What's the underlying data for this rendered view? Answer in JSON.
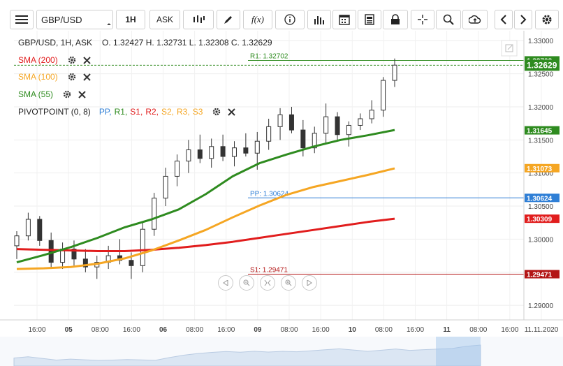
{
  "toolbar": {
    "symbol": "GBP/USD",
    "timeframe": "1H",
    "price_type": "ASK",
    "fx_label": "f(x)"
  },
  "header": {
    "instrument": "GBP/USD, 1H, ASK",
    "ohlc": "O. 1.32427 H. 1.32731 L. 1.32308 C. 1.32629"
  },
  "indicators": [
    {
      "label": "SMA (200)",
      "color": "#e11d1d"
    },
    {
      "label": "SMA (100)",
      "color": "#f5a623"
    },
    {
      "label": "SMA (55)",
      "color": "#2e8b1f"
    }
  ],
  "pivot": {
    "label": "PIVOTPOINT (0, 8)",
    "levels_legend": [
      {
        "text": "PP,",
        "color": "#2f7fd6"
      },
      {
        "text": "R1,",
        "color": "#2e8b1f"
      },
      {
        "text": "S1,",
        "color": "#e11d1d"
      },
      {
        "text": "R2,",
        "color": "#e11d1d"
      },
      {
        "text": "S2,",
        "color": "#f5a623"
      },
      {
        "text": "R3,",
        "color": "#f5a623"
      },
      {
        "text": "S3",
        "color": "#f5a623"
      }
    ]
  },
  "chart_data": {
    "type": "line",
    "title": "GBP/USD, 1H, ASK",
    "y_axis_ticks": [
      "1.33000",
      "1.32500",
      "1.32000",
      "1.31500",
      "1.31000",
      "1.30500",
      "1.30000",
      "1.29500",
      "1.29000"
    ],
    "ylim": [
      1.2878,
      1.3315
    ],
    "x_axis_ticks": [
      "16:00",
      "05",
      "08:00",
      "16:00",
      "06",
      "08:00",
      "16:00",
      "09",
      "08:00",
      "16:00",
      "10",
      "08:00",
      "16:00",
      "11",
      "08:00",
      "16:00",
      "11.11.2020"
    ],
    "price_tags": [
      {
        "label": "1.32702",
        "value": 1.32702,
        "bg": "#2e8b1f"
      },
      {
        "label": "1.32629",
        "value": 1.32629,
        "bg": "#2e8b1f"
      },
      {
        "label": "1.31645",
        "value": 1.31645,
        "bg": "#2e8b1f"
      },
      {
        "label": "1.31073",
        "value": 1.31073,
        "bg": "#f5a623"
      },
      {
        "label": "1.30624",
        "value": 1.30624,
        "bg": "#2f7fd6"
      },
      {
        "label": "1.30309",
        "value": 1.30309,
        "bg": "#e11d1d"
      },
      {
        "label": "1.29471",
        "value": 1.29471,
        "bg": "#b31515"
      }
    ],
    "pivot_lines": [
      {
        "label": "R1: 1.32702",
        "value": 1.32702,
        "color": "#2e8b1f"
      },
      {
        "label": "PP: 1.30624",
        "value": 1.30624,
        "color": "#2f7fd6"
      },
      {
        "label": "S1: 1.29471",
        "value": 1.29471,
        "color": "#b31515"
      }
    ],
    "series": [
      {
        "name": "SMA (200)",
        "color": "#e11d1d",
        "values": [
          1.2985,
          1.2984,
          1.2983,
          1.2982,
          1.2982,
          1.2984,
          1.2987,
          1.2991,
          1.2996,
          1.3002,
          1.3008,
          1.3014,
          1.302,
          1.3026,
          1.3031
        ]
      },
      {
        "name": "SMA (100)",
        "color": "#f5a623",
        "values": [
          1.2955,
          1.2956,
          1.2958,
          1.2963,
          1.2971,
          1.2983,
          1.2998,
          1.3014,
          1.3033,
          1.3051,
          1.3067,
          1.3079,
          1.3088,
          1.3097,
          1.3107
        ]
      },
      {
        "name": "SMA (55)",
        "color": "#2e8b1f",
        "values": [
          1.2965,
          1.2976,
          1.2988,
          1.3002,
          1.3018,
          1.303,
          1.3045,
          1.3068,
          1.3095,
          1.3115,
          1.3128,
          1.314,
          1.315,
          1.3157,
          1.3165
        ]
      }
    ],
    "candles": [
      [
        1.299,
        1.3012,
        1.297,
        1.3005
      ],
      [
        1.3005,
        1.304,
        1.2998,
        1.303
      ],
      [
        1.303,
        1.3035,
        1.299,
        1.2998
      ],
      [
        1.2998,
        1.301,
        1.2955,
        1.2965
      ],
      [
        1.2965,
        1.2995,
        1.2955,
        1.2985
      ],
      [
        1.2985,
        1.2998,
        1.296,
        1.297
      ],
      [
        1.297,
        1.2985,
        1.295,
        1.2958
      ],
      [
        1.2958,
        1.2975,
        1.294,
        1.2965
      ],
      [
        1.2965,
        1.299,
        1.2955,
        1.2975
      ],
      [
        1.2975,
        1.3,
        1.2962,
        1.2968
      ],
      [
        1.2968,
        1.298,
        1.294,
        1.296
      ],
      [
        1.296,
        1.3025,
        1.295,
        1.3015
      ],
      [
        1.3015,
        1.307,
        1.3005,
        1.3062
      ],
      [
        1.3062,
        1.3108,
        1.305,
        1.3095
      ],
      [
        1.3095,
        1.3128,
        1.308,
        1.3118
      ],
      [
        1.3118,
        1.315,
        1.31,
        1.3135
      ],
      [
        1.3135,
        1.3158,
        1.3115,
        1.3122
      ],
      [
        1.3122,
        1.3152,
        1.3108,
        1.314
      ],
      [
        1.314,
        1.3158,
        1.3118,
        1.3125
      ],
      [
        1.3125,
        1.3148,
        1.311,
        1.3138
      ],
      [
        1.3138,
        1.316,
        1.3125,
        1.313
      ],
      [
        1.313,
        1.3162,
        1.3105,
        1.3148
      ],
      [
        1.3148,
        1.3182,
        1.3135,
        1.317
      ],
      [
        1.317,
        1.3198,
        1.315,
        1.3188
      ],
      [
        1.3188,
        1.32,
        1.316,
        1.3165
      ],
      [
        1.3165,
        1.318,
        1.3125,
        1.3138
      ],
      [
        1.3138,
        1.317,
        1.313,
        1.316
      ],
      [
        1.316,
        1.3205,
        1.3145,
        1.3185
      ],
      [
        1.3185,
        1.3192,
        1.3148,
        1.3158
      ],
      [
        1.3158,
        1.3178,
        1.314,
        1.3172
      ],
      [
        1.3172,
        1.319,
        1.3165,
        1.3182
      ],
      [
        1.3182,
        1.321,
        1.3175,
        1.3195
      ],
      [
        1.3195,
        1.3245,
        1.3185,
        1.324
      ],
      [
        1.324,
        1.3273,
        1.323,
        1.3263
      ]
    ]
  }
}
